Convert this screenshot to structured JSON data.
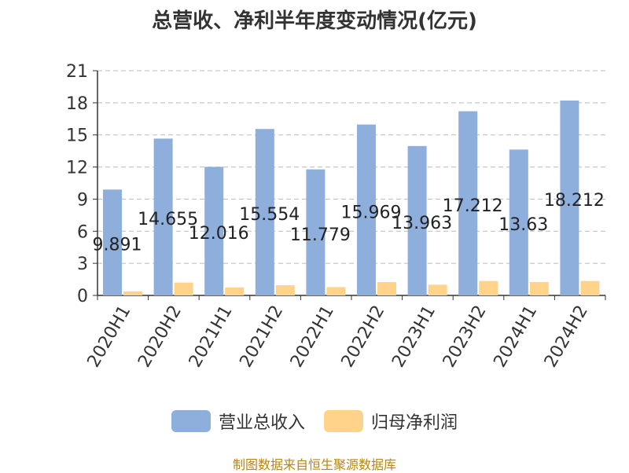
{
  "title": "总营收、净利半年度变动情况(亿元)",
  "source": "制图数据来自恒生聚源数据库",
  "colors": {
    "revenue": "#8eaedc",
    "profit": "#ffd48a",
    "grid": "#bbbbbb",
    "axis": "#333333"
  },
  "chart_data": {
    "type": "bar",
    "categories": [
      "2020H1",
      "2020H2",
      "2021H1",
      "2021H2",
      "2022H1",
      "2022H2",
      "2023H1",
      "2023H2",
      "2024H1",
      "2024H2"
    ],
    "series": [
      {
        "name": "营业总收入",
        "values": [
          9.891,
          14.655,
          12.016,
          15.554,
          11.779,
          15.969,
          13.963,
          17.212,
          13.63,
          18.212
        ],
        "labels": [
          "9.891",
          "14.655",
          "12.016",
          "15.554",
          "11.779",
          "15.969",
          "13.963",
          "17.212",
          "13.63",
          "18.212"
        ]
      },
      {
        "name": "归母净利润",
        "values": [
          0.38,
          1.2,
          0.75,
          0.95,
          0.78,
          1.25,
          1.0,
          1.35,
          1.25,
          1.35
        ]
      }
    ],
    "ylim": [
      0,
      21
    ],
    "yticks": [
      0,
      3,
      6,
      9,
      12,
      15,
      18,
      21
    ],
    "grid": true,
    "legend": "bottom"
  }
}
